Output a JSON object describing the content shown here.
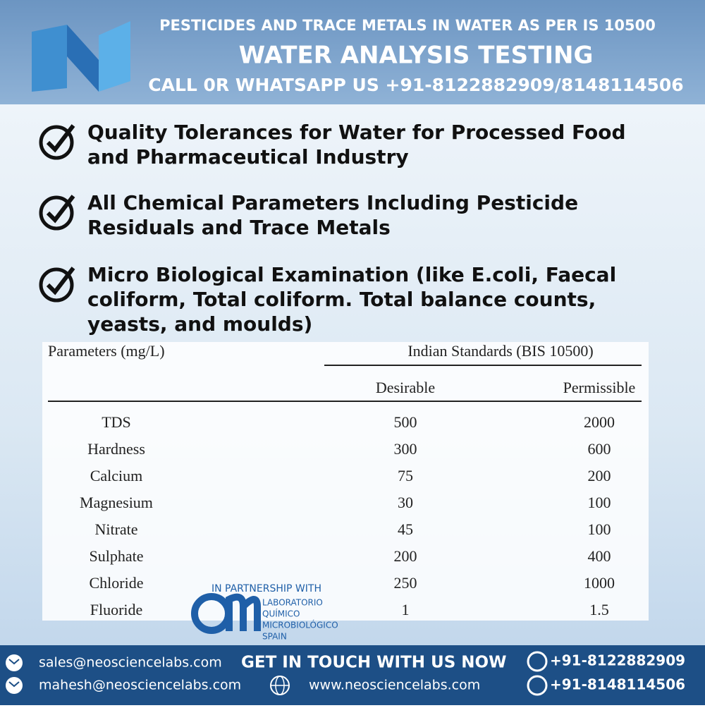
{
  "header": {
    "subtitle": "PESTICIDES AND TRACE METALS IN WATER AS PER IS 10500",
    "title": "WATER ANALYSIS TESTING",
    "call": "CALL 0R WHATSAPP US +91-8122882909/8148114506"
  },
  "bullets": [
    "Quality Tolerances for Water for Processed Food and Pharmaceutical Industry",
    "All Chemical Parameters Including Pesticide Residuals and Trace Metals",
    "Micro Biological Examination (like E.coli, Faecal coliform, Total coliform. Total balance counts, yeasts, and moulds)"
  ],
  "table": {
    "parameter_header": "Parameters (mg/L)",
    "group_header": "Indian Standards (BIS 10500)",
    "columns": [
      "Desirable",
      "Permissible"
    ],
    "rows": [
      [
        "TDS",
        500,
        2000
      ],
      [
        "Hardness",
        300,
        600
      ],
      [
        "Calcium",
        75,
        200
      ],
      [
        "Magnesium",
        30,
        100
      ],
      [
        "Nitrate",
        45,
        100
      ],
      [
        "Sulphate",
        200,
        400
      ],
      [
        "Chloride",
        250,
        1000
      ],
      [
        "Fluoride",
        1,
        1.5
      ]
    ]
  },
  "partner": {
    "intro": "IN PARTNERSHIP WITH",
    "lines": [
      "LABORATORIO",
      "QUÍMICO",
      "MICROBIOLÓGICO",
      "SPAIN"
    ]
  },
  "footer": {
    "email1": "sales@neosciencelabs.com",
    "email2": "mahesh@neosciencelabs.com",
    "cta": "GET IN TOUCH WITH US NOW",
    "website": "www.neosciencelabs.com",
    "phone1": "+91-8122882909",
    "phone2": "+91-8148114506"
  }
}
